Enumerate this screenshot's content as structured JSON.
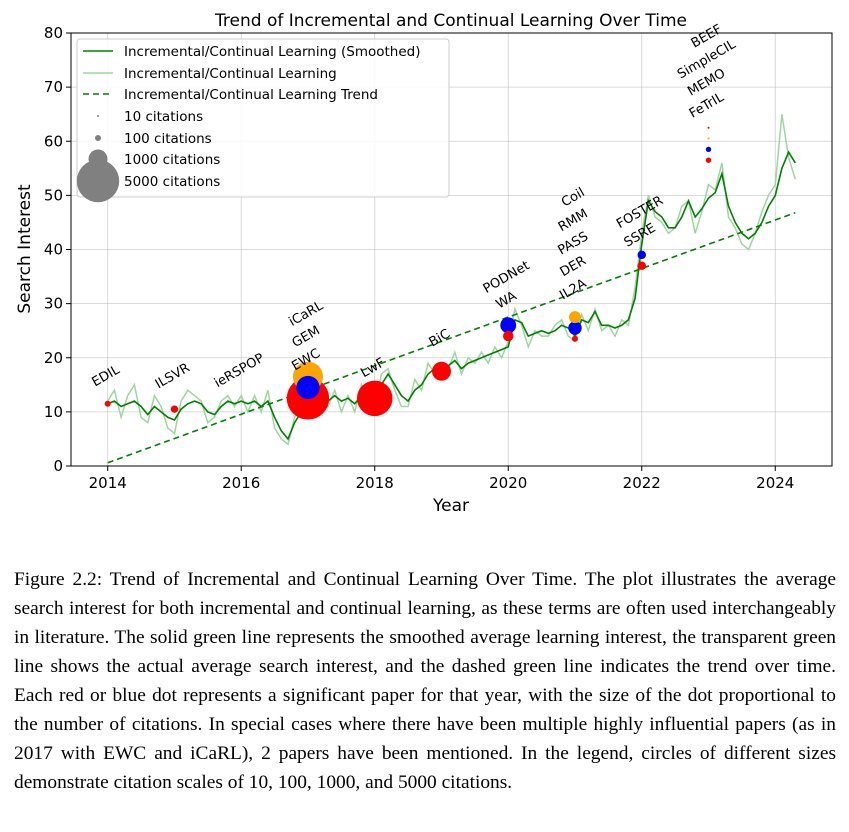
{
  "chart_data": {
    "type": "line",
    "title": "Trend of Incremental and Continual Learning Over Time",
    "xlabel": "Year",
    "ylabel": "Search Interest",
    "xlim": [
      2013.45,
      2024.85
    ],
    "ylim": [
      0,
      80
    ],
    "xticks": [
      2014,
      2016,
      2018,
      2020,
      2022,
      2024
    ],
    "yticks": [
      0,
      10,
      20,
      30,
      40,
      50,
      60,
      70,
      80
    ],
    "grid": true,
    "legend_position": "top-left",
    "colors": {
      "smoothed": "#008000",
      "raw": "#9ed69e",
      "trend": "#008000",
      "paper_red": "#ff0000",
      "paper_blue": "#0000ff",
      "paper_orange": "#ffa500",
      "legend_marker": "#808080"
    },
    "legend": {
      "items": [
        "Incremental/Continual Learning (Smoothed)",
        "Incremental/Continual Learning",
        "Incremental/Continual Learning Trend"
      ],
      "size_items": [
        {
          "label": "10 citations",
          "citations": 10
        },
        {
          "label": "100 citations",
          "citations": 100
        },
        {
          "label": "1000 citations",
          "citations": 1000
        },
        {
          "label": "5000 citations",
          "citations": 5000
        }
      ]
    },
    "series": [
      {
        "name": "Incremental/Continual Learning (Smoothed)",
        "style": "solid",
        "x": [
          2014.0,
          2014.1,
          2014.2,
          2014.3,
          2014.4,
          2014.5,
          2014.6,
          2014.7,
          2014.8,
          2014.9,
          2015.0,
          2015.1,
          2015.2,
          2015.3,
          2015.4,
          2015.5,
          2015.6,
          2015.7,
          2015.8,
          2015.9,
          2016.0,
          2016.1,
          2016.2,
          2016.3,
          2016.4,
          2016.5,
          2016.6,
          2016.7,
          2016.8,
          2016.9,
          2017.0,
          2017.1,
          2017.2,
          2017.3,
          2017.4,
          2017.5,
          2017.6,
          2017.7,
          2017.8,
          2017.9,
          2018.0,
          2018.1,
          2018.2,
          2018.3,
          2018.4,
          2018.5,
          2018.6,
          2018.7,
          2018.8,
          2018.9,
          2019.0,
          2019.1,
          2019.2,
          2019.3,
          2019.4,
          2019.5,
          2019.6,
          2019.7,
          2019.8,
          2019.9,
          2020.0,
          2020.1,
          2020.2,
          2020.3,
          2020.4,
          2020.5,
          2020.6,
          2020.7,
          2020.8,
          2020.9,
          2021.0,
          2021.1,
          2021.2,
          2021.3,
          2021.4,
          2021.5,
          2021.6,
          2021.7,
          2021.8,
          2021.9,
          2022.0,
          2022.1,
          2022.2,
          2022.3,
          2022.4,
          2022.5,
          2022.6,
          2022.7,
          2022.8,
          2022.9,
          2023.0,
          2023.1,
          2023.2,
          2023.3,
          2023.4,
          2023.5,
          2023.6,
          2023.7,
          2023.8,
          2023.9,
          2024.0,
          2024.1,
          2024.2,
          2024.3
        ],
        "y": [
          11.5,
          12,
          11,
          11.5,
          12,
          11,
          9.5,
          11,
          10,
          9,
          8.5,
          10.5,
          11.5,
          12,
          11.5,
          10,
          9.5,
          11,
          12,
          11.5,
          12,
          11.5,
          12,
          11,
          12,
          9,
          6.5,
          5,
          8,
          10,
          12,
          13,
          12.5,
          12,
          13,
          12,
          12.5,
          11.5,
          13,
          12,
          12.5,
          15,
          17,
          15,
          13,
          12,
          14,
          15,
          17,
          18,
          18.5,
          18.5,
          19.5,
          18,
          19,
          19.5,
          20,
          20.5,
          21,
          21.5,
          22,
          27,
          26.5,
          24,
          24.5,
          25,
          24.5,
          25,
          26,
          25.5,
          24,
          27,
          26.5,
          28.5,
          26,
          26,
          25.5,
          26,
          27,
          31,
          41,
          49,
          47,
          46,
          44,
          44,
          46,
          49,
          46,
          47.5,
          49.5,
          50.5,
          54,
          48,
          45,
          43,
          42,
          43,
          45,
          48,
          50,
          55,
          58,
          56
        ]
      },
      {
        "name": "Incremental/Continual Learning",
        "style": "solid-light",
        "x": [
          2014.0,
          2014.1,
          2014.2,
          2014.3,
          2014.4,
          2014.5,
          2014.6,
          2014.7,
          2014.8,
          2014.9,
          2015.0,
          2015.1,
          2015.2,
          2015.3,
          2015.4,
          2015.5,
          2015.6,
          2015.7,
          2015.8,
          2015.9,
          2016.0,
          2016.1,
          2016.2,
          2016.3,
          2016.4,
          2016.5,
          2016.6,
          2016.7,
          2016.8,
          2016.9,
          2017.0,
          2017.1,
          2017.2,
          2017.3,
          2017.4,
          2017.5,
          2017.6,
          2017.7,
          2017.8,
          2017.9,
          2018.0,
          2018.1,
          2018.2,
          2018.3,
          2018.4,
          2018.5,
          2018.6,
          2018.7,
          2018.8,
          2018.9,
          2019.0,
          2019.1,
          2019.2,
          2019.3,
          2019.4,
          2019.5,
          2019.6,
          2019.7,
          2019.8,
          2019.9,
          2020.0,
          2020.1,
          2020.2,
          2020.3,
          2020.4,
          2020.5,
          2020.6,
          2020.7,
          2020.8,
          2020.9,
          2021.0,
          2021.1,
          2021.2,
          2021.3,
          2021.4,
          2021.5,
          2021.6,
          2021.7,
          2021.8,
          2021.9,
          2022.0,
          2022.1,
          2022.2,
          2022.3,
          2022.4,
          2022.5,
          2022.6,
          2022.7,
          2022.8,
          2022.9,
          2023.0,
          2023.1,
          2023.2,
          2023.3,
          2023.4,
          2023.5,
          2023.6,
          2023.7,
          2023.8,
          2023.9,
          2024.0,
          2024.1,
          2024.2,
          2024.3
        ],
        "y": [
          12,
          14,
          9,
          13,
          15,
          9,
          8,
          13,
          11,
          7,
          6,
          12,
          14,
          13,
          12,
          8,
          9,
          12,
          13,
          11,
          13,
          10,
          13,
          10,
          14,
          7,
          5,
          4,
          9,
          11,
          13,
          15,
          12,
          11,
          14,
          10,
          13,
          10,
          15,
          11,
          11,
          17,
          18,
          14,
          11,
          11,
          16,
          14,
          19,
          17,
          19,
          18,
          21,
          17,
          20,
          19,
          21,
          19,
          22,
          20,
          23,
          29,
          26,
          22,
          25,
          24,
          24,
          26,
          27,
          24,
          23,
          28,
          25,
          29,
          25,
          26,
          24,
          27,
          26,
          33,
          43,
          50,
          46,
          45,
          43,
          44,
          48,
          49,
          43,
          47,
          52,
          51,
          56,
          46,
          44,
          41,
          40,
          43,
          47,
          50,
          52,
          65,
          57,
          53
        ]
      },
      {
        "name": "Incremental/Continual Learning Trend",
        "style": "dashed",
        "x": [
          2014.0,
          2024.3
        ],
        "y": [
          0.6,
          46.8
        ]
      }
    ],
    "papers": [
      {
        "label": "EDIL",
        "year": 2014,
        "y": 11.5,
        "citations": 100,
        "color": "red"
      },
      {
        "label": "ILSVR",
        "year": 2015,
        "y": 10.5,
        "citations": 150,
        "color": "red"
      },
      {
        "label": "ieRSPOP",
        "year": 2016,
        "y": null,
        "citations": null,
        "color": null
      },
      {
        "label": "EWC",
        "year": 2017,
        "y": 12.5,
        "citations": 5000,
        "color": "red"
      },
      {
        "label": "GEM",
        "year": 2017,
        "y": 14.5,
        "citations": 1500,
        "color": "blue"
      },
      {
        "label": "iCaRL",
        "year": 2017,
        "y": 16.5,
        "citations": 2500,
        "color": "orange"
      },
      {
        "label": "LwF",
        "year": 2018,
        "y": 12.5,
        "citations": 3500,
        "color": "red"
      },
      {
        "label": "BiC",
        "year": 2019,
        "y": 17.5,
        "citations": 1000,
        "color": "red"
      },
      {
        "label": "WA",
        "year": 2020,
        "y": 24,
        "citations": 300,
        "color": "red"
      },
      {
        "label": "PODNet",
        "year": 2020,
        "y": 26,
        "citations": 700,
        "color": "blue"
      },
      {
        "label": "IL2A",
        "year": 2021,
        "y": 23.5,
        "citations": 100,
        "color": "red"
      },
      {
        "label": "DER",
        "year": 2021,
        "y": 25.5,
        "citations": 500,
        "color": "blue"
      },
      {
        "label": "PASS",
        "year": 2021,
        "y": 27.5,
        "citations": 400,
        "color": "orange"
      },
      {
        "label": "RMM",
        "year": 2021,
        "y": null,
        "citations": null,
        "color": null
      },
      {
        "label": "Coil",
        "year": 2021,
        "y": null,
        "citations": null,
        "color": null
      },
      {
        "label": "SSRE",
        "year": 2022,
        "y": 37,
        "citations": 200,
        "color": "red"
      },
      {
        "label": "FOSTER",
        "year": 2022,
        "y": 39,
        "citations": 200,
        "color": "blue"
      },
      {
        "label": "FeTrIL",
        "year": 2023,
        "y": 56.5,
        "citations": 80,
        "color": "red"
      },
      {
        "label": "MEMO",
        "year": 2023,
        "y": 58.5,
        "citations": 80,
        "color": "blue"
      },
      {
        "label": "SimpleCIL",
        "year": 2023,
        "y": 60.5,
        "citations": 10,
        "color": "orange"
      },
      {
        "label": "BEEF",
        "year": 2023,
        "y": 62.5,
        "citations": 10,
        "color": "red"
      }
    ]
  },
  "caption": "Figure 2.2: Trend of Incremental and Continual Learning Over Time. The plot illustrates the average search interest for both incremental and continual learning, as these terms are often used interchangeably in literature. The solid green line represents the smoothed average learning interest, the transparent green line shows the actual average search interest, and the dashed green line indicates the trend over time. Each red or blue dot represents a significant paper for that year, with the size of the dot proportional to the number of citations. In special cases where there have been multiple highly influential papers (as in 2017 with EWC and iCaRL), 2 papers have been mentioned. In the legend, circles of different sizes demonstrate citation scales of 10, 100, 1000, and 5000 citations."
}
